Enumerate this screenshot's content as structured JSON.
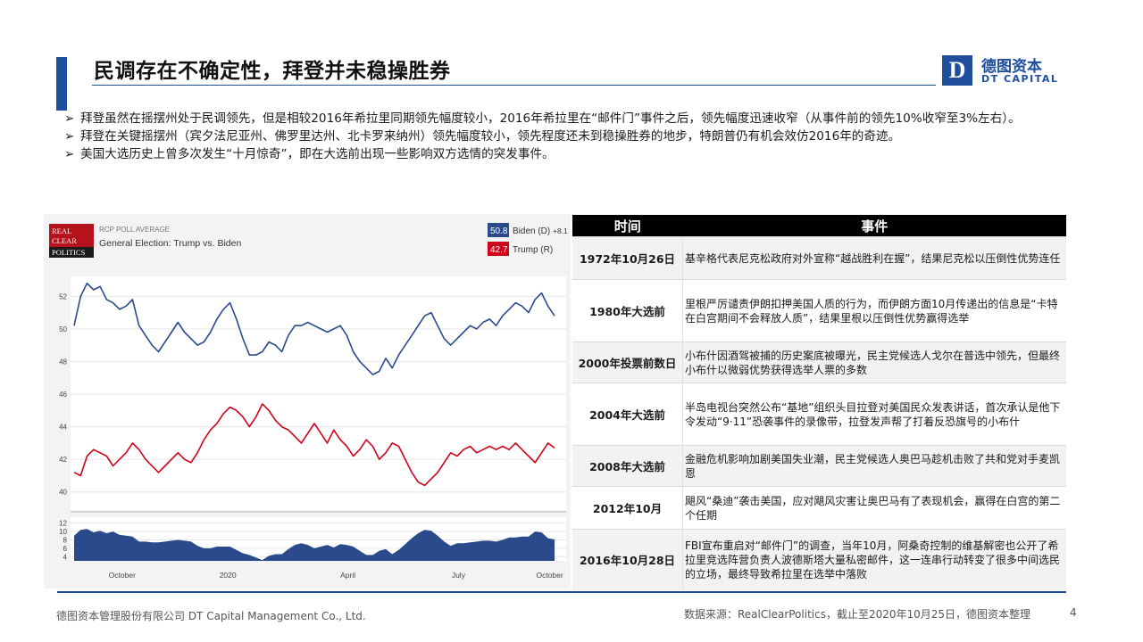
{
  "slide": {
    "title": "民调存在不确定性，拜登并未稳操胜券",
    "logo": {
      "box_letter": "D",
      "cn": "德图资本",
      "en": "DT CAPITAL"
    },
    "bullets": [
      "拜登虽然在摇摆州处于民调领先，但是相较2016年希拉里同期领先幅度较小，2016年希拉里在“邮件门”事件之后，领先幅度迅速收窄（从事件前的领先10%收窄至3%左右）。",
      "拜登在关键摇摆州（宾夕法尼亚州、佛罗里达州、北卡罗来纳州）领先幅度较小，领先程度还未到稳操胜券的地步，特朗普仍有机会效仿2016年的奇迹。",
      "美国大选历史上曾多次发生“十月惊奇”，即在大选前出现一些影响双方选情的突发事件。"
    ],
    "bullet_mark": "➢",
    "footer_left": "德图资本管理股份有限公司  DT Capital Management  Co., Ltd.",
    "footer_right": "数据来源：RealClearPolitics，截止至2020年10月25日，德图资本整理",
    "page_number": "4"
  },
  "chart_header": {
    "logo_lines": [
      "REAL",
      "CLEAR",
      "POLITICS"
    ],
    "label": "RCP POLL AVERAGE",
    "title": "General Election: Trump vs. Biden",
    "legend": [
      {
        "value": "50.8",
        "name": "Biden (D)",
        "spread": "+8.1",
        "color": "#2b4a8c"
      },
      {
        "value": "42.7",
        "name": "Trump (R)",
        "spread": "",
        "color": "#d0021b"
      }
    ]
  },
  "chart_data": {
    "type": "line",
    "x_ticks": [
      "October",
      "2020",
      "April",
      "July",
      "October"
    ],
    "upper_panel": {
      "y_ticks": [
        40,
        42,
        44,
        46,
        48,
        50,
        52
      ],
      "ylim": [
        39,
        53
      ],
      "series": [
        {
          "name": "Biden (D)",
          "color": "#2b4a8c",
          "values": [
            50.2,
            52.0,
            52.8,
            52.4,
            52.6,
            51.8,
            51.6,
            51.2,
            51.4,
            51.8,
            50.2,
            49.6,
            49.0,
            48.6,
            49.2,
            49.8,
            50.4,
            49.8,
            49.4,
            49.0,
            49.2,
            49.8,
            50.6,
            51.2,
            51.6,
            50.6,
            49.4,
            48.4,
            48.4,
            48.6,
            49.2,
            49.0,
            48.6,
            49.6,
            50.2,
            50.2,
            50.4,
            50.2,
            50.0,
            49.8,
            50.0,
            50.2,
            49.6,
            48.6,
            48.0,
            47.6,
            47.2,
            47.4,
            48.2,
            47.6,
            48.4,
            49.0,
            49.6,
            50.2,
            50.8,
            51.0,
            50.2,
            49.4,
            49.0,
            49.4,
            49.8,
            50.2,
            50.0,
            50.4,
            50.6,
            50.2,
            50.8,
            51.2,
            51.6,
            51.4,
            51.0,
            51.8,
            52.2,
            51.4,
            50.8
          ]
        },
        {
          "name": "Trump (R)",
          "color": "#d0021b",
          "values": [
            41.2,
            41.0,
            42.2,
            42.6,
            42.4,
            42.2,
            41.6,
            42.0,
            42.4,
            43.0,
            42.6,
            42.0,
            41.6,
            41.2,
            41.6,
            42.0,
            42.4,
            42.0,
            41.8,
            42.4,
            43.2,
            43.8,
            44.2,
            44.8,
            45.2,
            45.0,
            44.6,
            44.0,
            44.6,
            45.4,
            45.0,
            44.4,
            44.0,
            43.8,
            43.4,
            43.0,
            43.6,
            44.2,
            43.6,
            43.0,
            43.8,
            43.2,
            42.8,
            42.2,
            42.6,
            43.2,
            42.8,
            42.0,
            42.4,
            43.0,
            42.8,
            42.0,
            41.2,
            40.6,
            40.4,
            40.8,
            41.2,
            41.8,
            42.4,
            42.2,
            42.6,
            42.8,
            42.4,
            42.6,
            42.8,
            42.6,
            42.8,
            42.6,
            43.0,
            42.6,
            42.2,
            41.8,
            42.4,
            43.0,
            42.7
          ]
        }
      ]
    },
    "lower_panel": {
      "name": "Spread",
      "y_ticks": [
        4,
        6,
        8,
        10,
        12
      ],
      "ylim": [
        3,
        13
      ],
      "color": "#2b4a8c",
      "values": [
        9.0,
        10.4,
        10.6,
        9.8,
        10.2,
        9.6,
        10.0,
        9.2,
        9.0,
        8.8,
        7.6,
        7.6,
        7.4,
        7.4,
        7.6,
        7.8,
        8.0,
        7.8,
        7.6,
        6.6,
        6.0,
        6.0,
        6.4,
        6.4,
        6.4,
        5.6,
        4.8,
        4.4,
        3.8,
        3.2,
        4.2,
        4.6,
        4.6,
        5.8,
        6.8,
        7.2,
        6.8,
        6.0,
        6.4,
        6.8,
        6.2,
        7.0,
        6.8,
        6.4,
        5.4,
        4.4,
        4.4,
        5.4,
        5.8,
        4.6,
        5.6,
        7.0,
        8.4,
        9.6,
        10.4,
        10.2,
        9.0,
        7.6,
        6.6,
        7.2,
        7.2,
        7.4,
        7.6,
        7.8,
        7.8,
        7.6,
        8.0,
        8.6,
        8.6,
        8.8,
        8.8,
        10.0,
        9.8,
        8.4,
        8.1
      ]
    }
  },
  "events_table": {
    "headers": [
      "时间",
      "事件"
    ],
    "rows": [
      {
        "time": "1972年10月26日",
        "event": "基辛格代表尼克松政府对外宣称“越战胜利在握”，结果尼克松以压倒性优势连任"
      },
      {
        "time": "1980年大选前",
        "event": "里根严厉谴责伊朗扣押美国人质的行为，而伊朗方面10月传递出的信息是“卡特在白宫期间不会释放人质”，结果里根以压倒性优势赢得选举"
      },
      {
        "time": "2000年投票前数日",
        "event": "小布什因酒驾被捕的历史案底被曝光，民主党候选人戈尔在普选中领先，但最终小布什以微弱优势获得选举人票的多数"
      },
      {
        "time": "2004年大选前",
        "event": "半岛电视台突然公布“基地”组织头目拉登对美国民众发表讲话，首次承认是他下令发动“9·11”恐袭事件的录像带，拉登发声帮了打着反恐旗号的小布什"
      },
      {
        "time": "2008年大选前",
        "event": "金融危机影响加剧美国失业潮，民主党候选人奥巴马趁机击败了共和党对手麦凯恩"
      },
      {
        "time": "2012年10月",
        "event": "飓风“桑迪”袭击美国，应对飓风灾害让奥巴马有了表现机会，赢得在白宫的第二个任期"
      },
      {
        "time": "2016年10月28日",
        "event": "FBI宣布重启对“邮件门”的调查，当年10月，阿桑奇控制的维基解密也公开了希拉里竞选阵营负责人波德斯塔大量私密邮件，这一连串行动转变了很多中间选民的立场，最终导致希拉里在选举中落败"
      }
    ]
  }
}
